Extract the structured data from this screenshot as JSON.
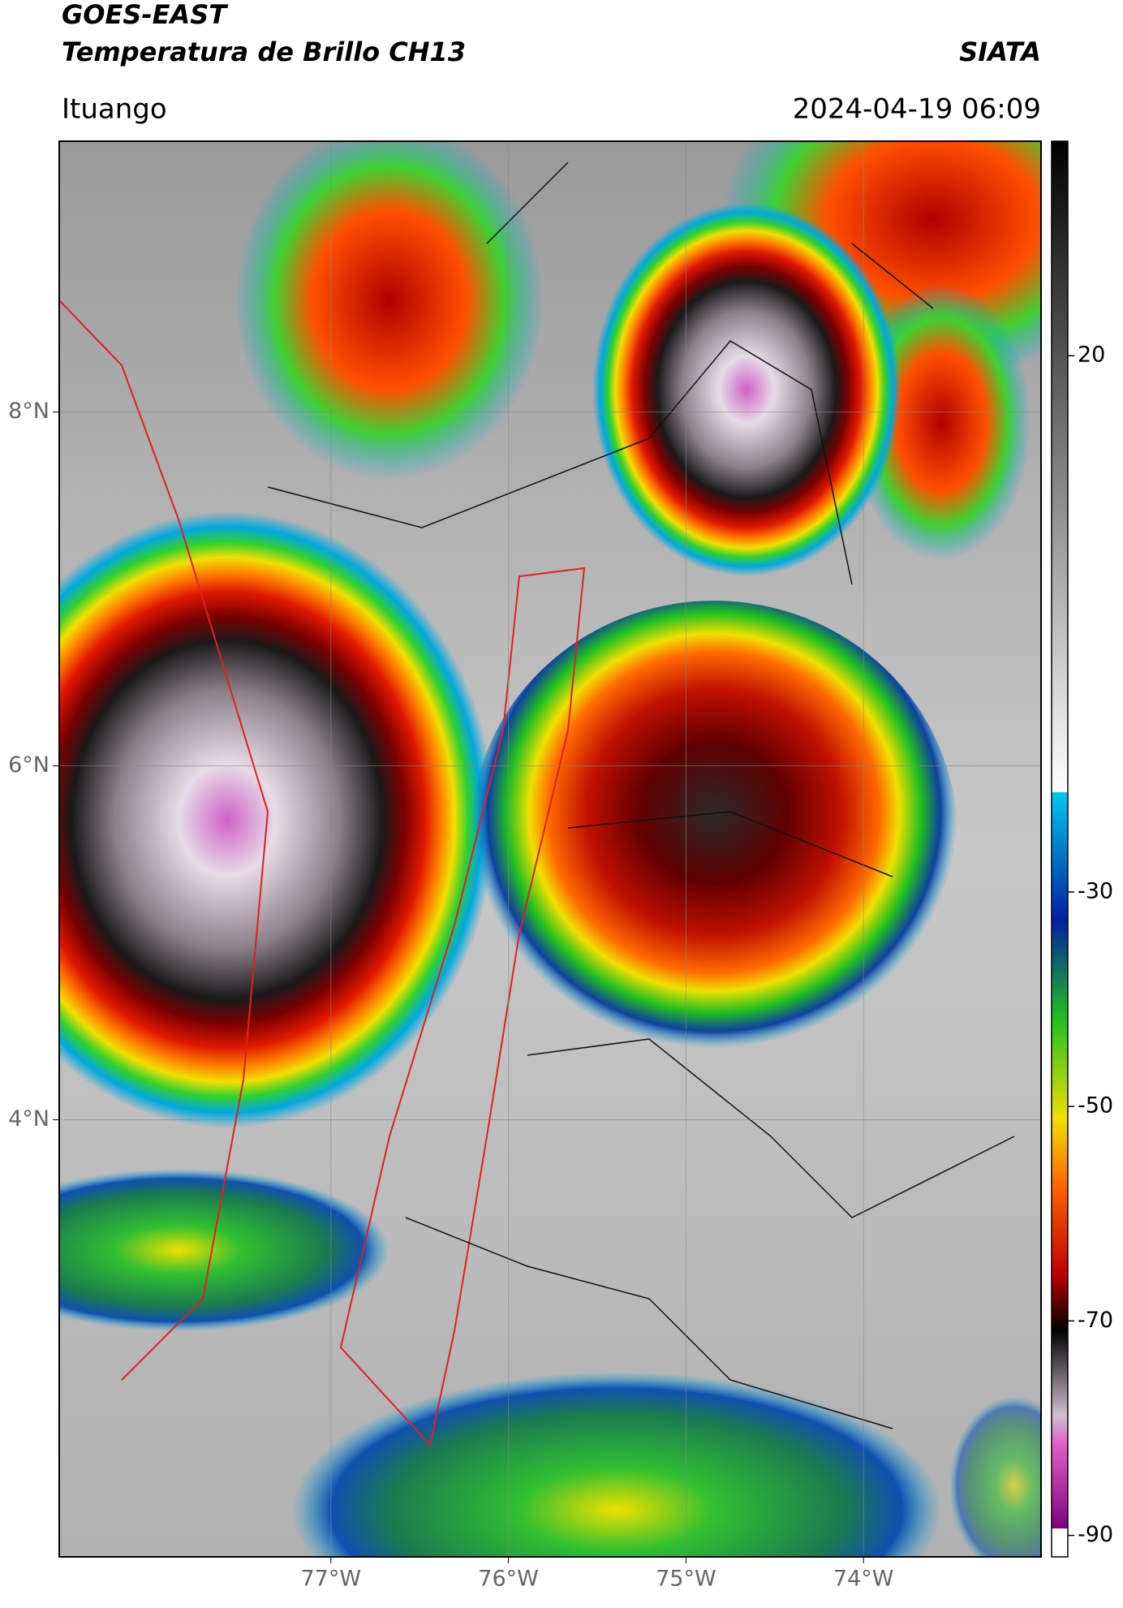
{
  "header": {
    "title": "GOES-EAST",
    "subtitle": "Temperatura de Brillo CH13",
    "source": "SIATA",
    "location": "Ituango",
    "datetime": "2024-04-19 06:09"
  },
  "map": {
    "xlim": [
      -78.53,
      -73.0
    ],
    "ylim": [
      1.53,
      9.53
    ],
    "xticks": [
      {
        "value": -77,
        "label": "77°W"
      },
      {
        "value": -76,
        "label": "76°W"
      },
      {
        "value": -75,
        "label": "75°W"
      },
      {
        "value": -74,
        "label": "74°W"
      }
    ],
    "yticks": [
      {
        "value": 8,
        "label": "8°N"
      },
      {
        "value": 6,
        "label": "6°N"
      },
      {
        "value": 4,
        "label": "4°N"
      }
    ],
    "grid": true
  },
  "colorbar": {
    "clim": [
      -92,
      40
    ],
    "ticks": [
      20,
      -30,
      -50,
      -70,
      -90
    ]
  }
}
